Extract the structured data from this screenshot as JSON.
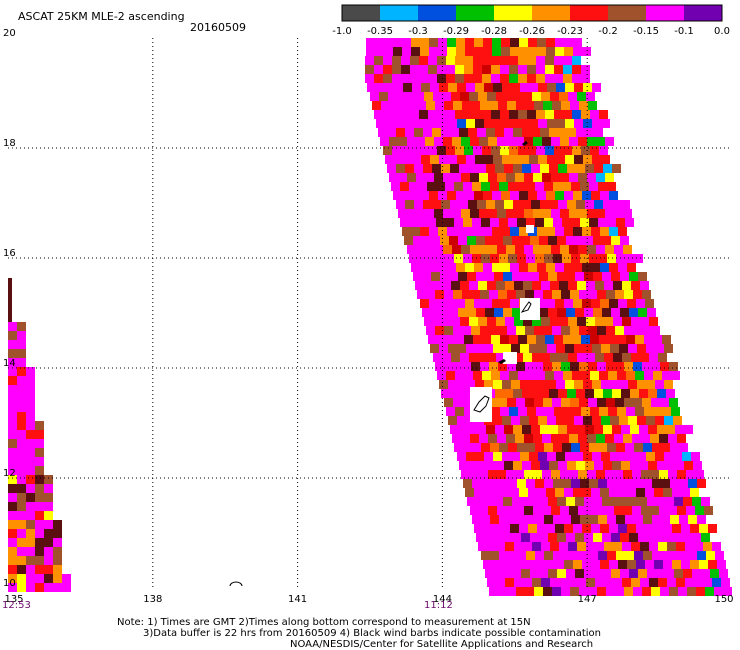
{
  "title": "ASCAT 25KM MLE-2 ascending",
  "date": "20160509",
  "colorbar": {
    "colors": [
      "#4a4a4a",
      "#00b4ff",
      "#0050e0",
      "#00c000",
      "#ffff00",
      "#ff9000",
      "#ff1010",
      "#a0522d",
      "#ff00ff",
      "#7000b0"
    ],
    "labels": [
      "-1.0",
      "-0.35",
      "-0.3",
      "-0.29",
      "-0.28",
      "-0.26",
      "-0.23",
      "-0.2",
      "-0.15",
      "-0.1",
      "0.0"
    ]
  },
  "axes": {
    "lat_ticks": [
      "20",
      "18",
      "16",
      "14",
      "12",
      "10"
    ],
    "lon_ticks": [
      "135",
      "138",
      "141",
      "144",
      "147",
      "150"
    ],
    "times": [
      "12:53",
      "11:12"
    ]
  },
  "notes": {
    "line1": "Note: 1) Times are GMT 2)Times along bottom correspond to measurement at 15N",
    "line2": "3)Data buffer is 22 hrs from 20160509 4) Black wind barbs indicate possible contamination",
    "line3": "NOAA/NESDIS/Center for Satellite Applications and Research"
  }
}
